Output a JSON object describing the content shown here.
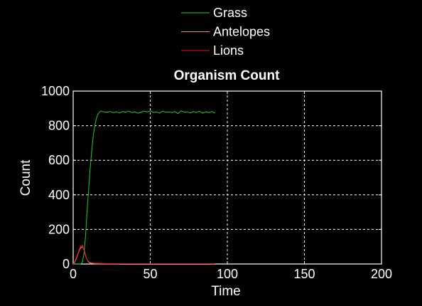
{
  "chart_data": {
    "type": "line",
    "title": "Organism Count",
    "xlabel": "Time",
    "ylabel": "Count",
    "xlim": [
      0,
      200
    ],
    "ylim": [
      0,
      1000
    ],
    "xticks": [
      0,
      50,
      100,
      150,
      200
    ],
    "yticks": [
      0,
      200,
      400,
      600,
      800,
      1000
    ],
    "grid": true,
    "legend_position": "top-center",
    "background": "#000000",
    "axis_color": "#ffffff",
    "series": [
      {
        "name": "Grass",
        "color": "#22cc22",
        "x": [
          0,
          1,
          2,
          3,
          4,
          5,
          6,
          7,
          8,
          9,
          10,
          11,
          12,
          13,
          14,
          15,
          16,
          17,
          18,
          19,
          20,
          22,
          24,
          26,
          28,
          30,
          32,
          34,
          36,
          38,
          40,
          42,
          44,
          46,
          48,
          50,
          52,
          54,
          56,
          58,
          60,
          62,
          64,
          66,
          68,
          70,
          72,
          74,
          76,
          78,
          80,
          82,
          84,
          86,
          88,
          90,
          92
        ],
        "values": [
          0,
          0,
          0,
          0,
          0,
          0,
          10,
          60,
          160,
          300,
          430,
          550,
          650,
          740,
          800,
          840,
          865,
          878,
          885,
          882,
          880,
          878,
          882,
          876,
          880,
          874,
          882,
          878,
          884,
          876,
          880,
          872,
          878,
          884,
          880,
          886,
          876,
          880,
          872,
          884,
          878,
          880,
          876,
          882,
          870,
          886,
          878,
          880,
          874,
          882,
          876,
          884,
          872,
          880,
          876,
          882,
          872
        ]
      },
      {
        "name": "Antelopes",
        "color": "#ff8888",
        "x": [
          0,
          1,
          2,
          3,
          4,
          5,
          6,
          7,
          8,
          9,
          10,
          11,
          12,
          13,
          14,
          15,
          20,
          25,
          30
        ],
        "values": [
          0,
          10,
          30,
          55,
          80,
          95,
          100,
          85,
          50,
          25,
          12,
          6,
          3,
          2,
          1,
          0,
          0,
          0,
          0
        ]
      },
      {
        "name": "Lions",
        "color": "#ee1111",
        "x": [
          0,
          1,
          2,
          3,
          4,
          5,
          6,
          7,
          8,
          9,
          10,
          11,
          12,
          13,
          14,
          16,
          20,
          30,
          40,
          50,
          60,
          70,
          80,
          90,
          92
        ],
        "values": [
          0,
          15,
          35,
          60,
          85,
          105,
          110,
          80,
          45,
          25,
          15,
          10,
          8,
          6,
          5,
          4,
          3,
          2,
          2,
          2,
          2,
          2,
          2,
          2,
          2
        ]
      }
    ]
  }
}
